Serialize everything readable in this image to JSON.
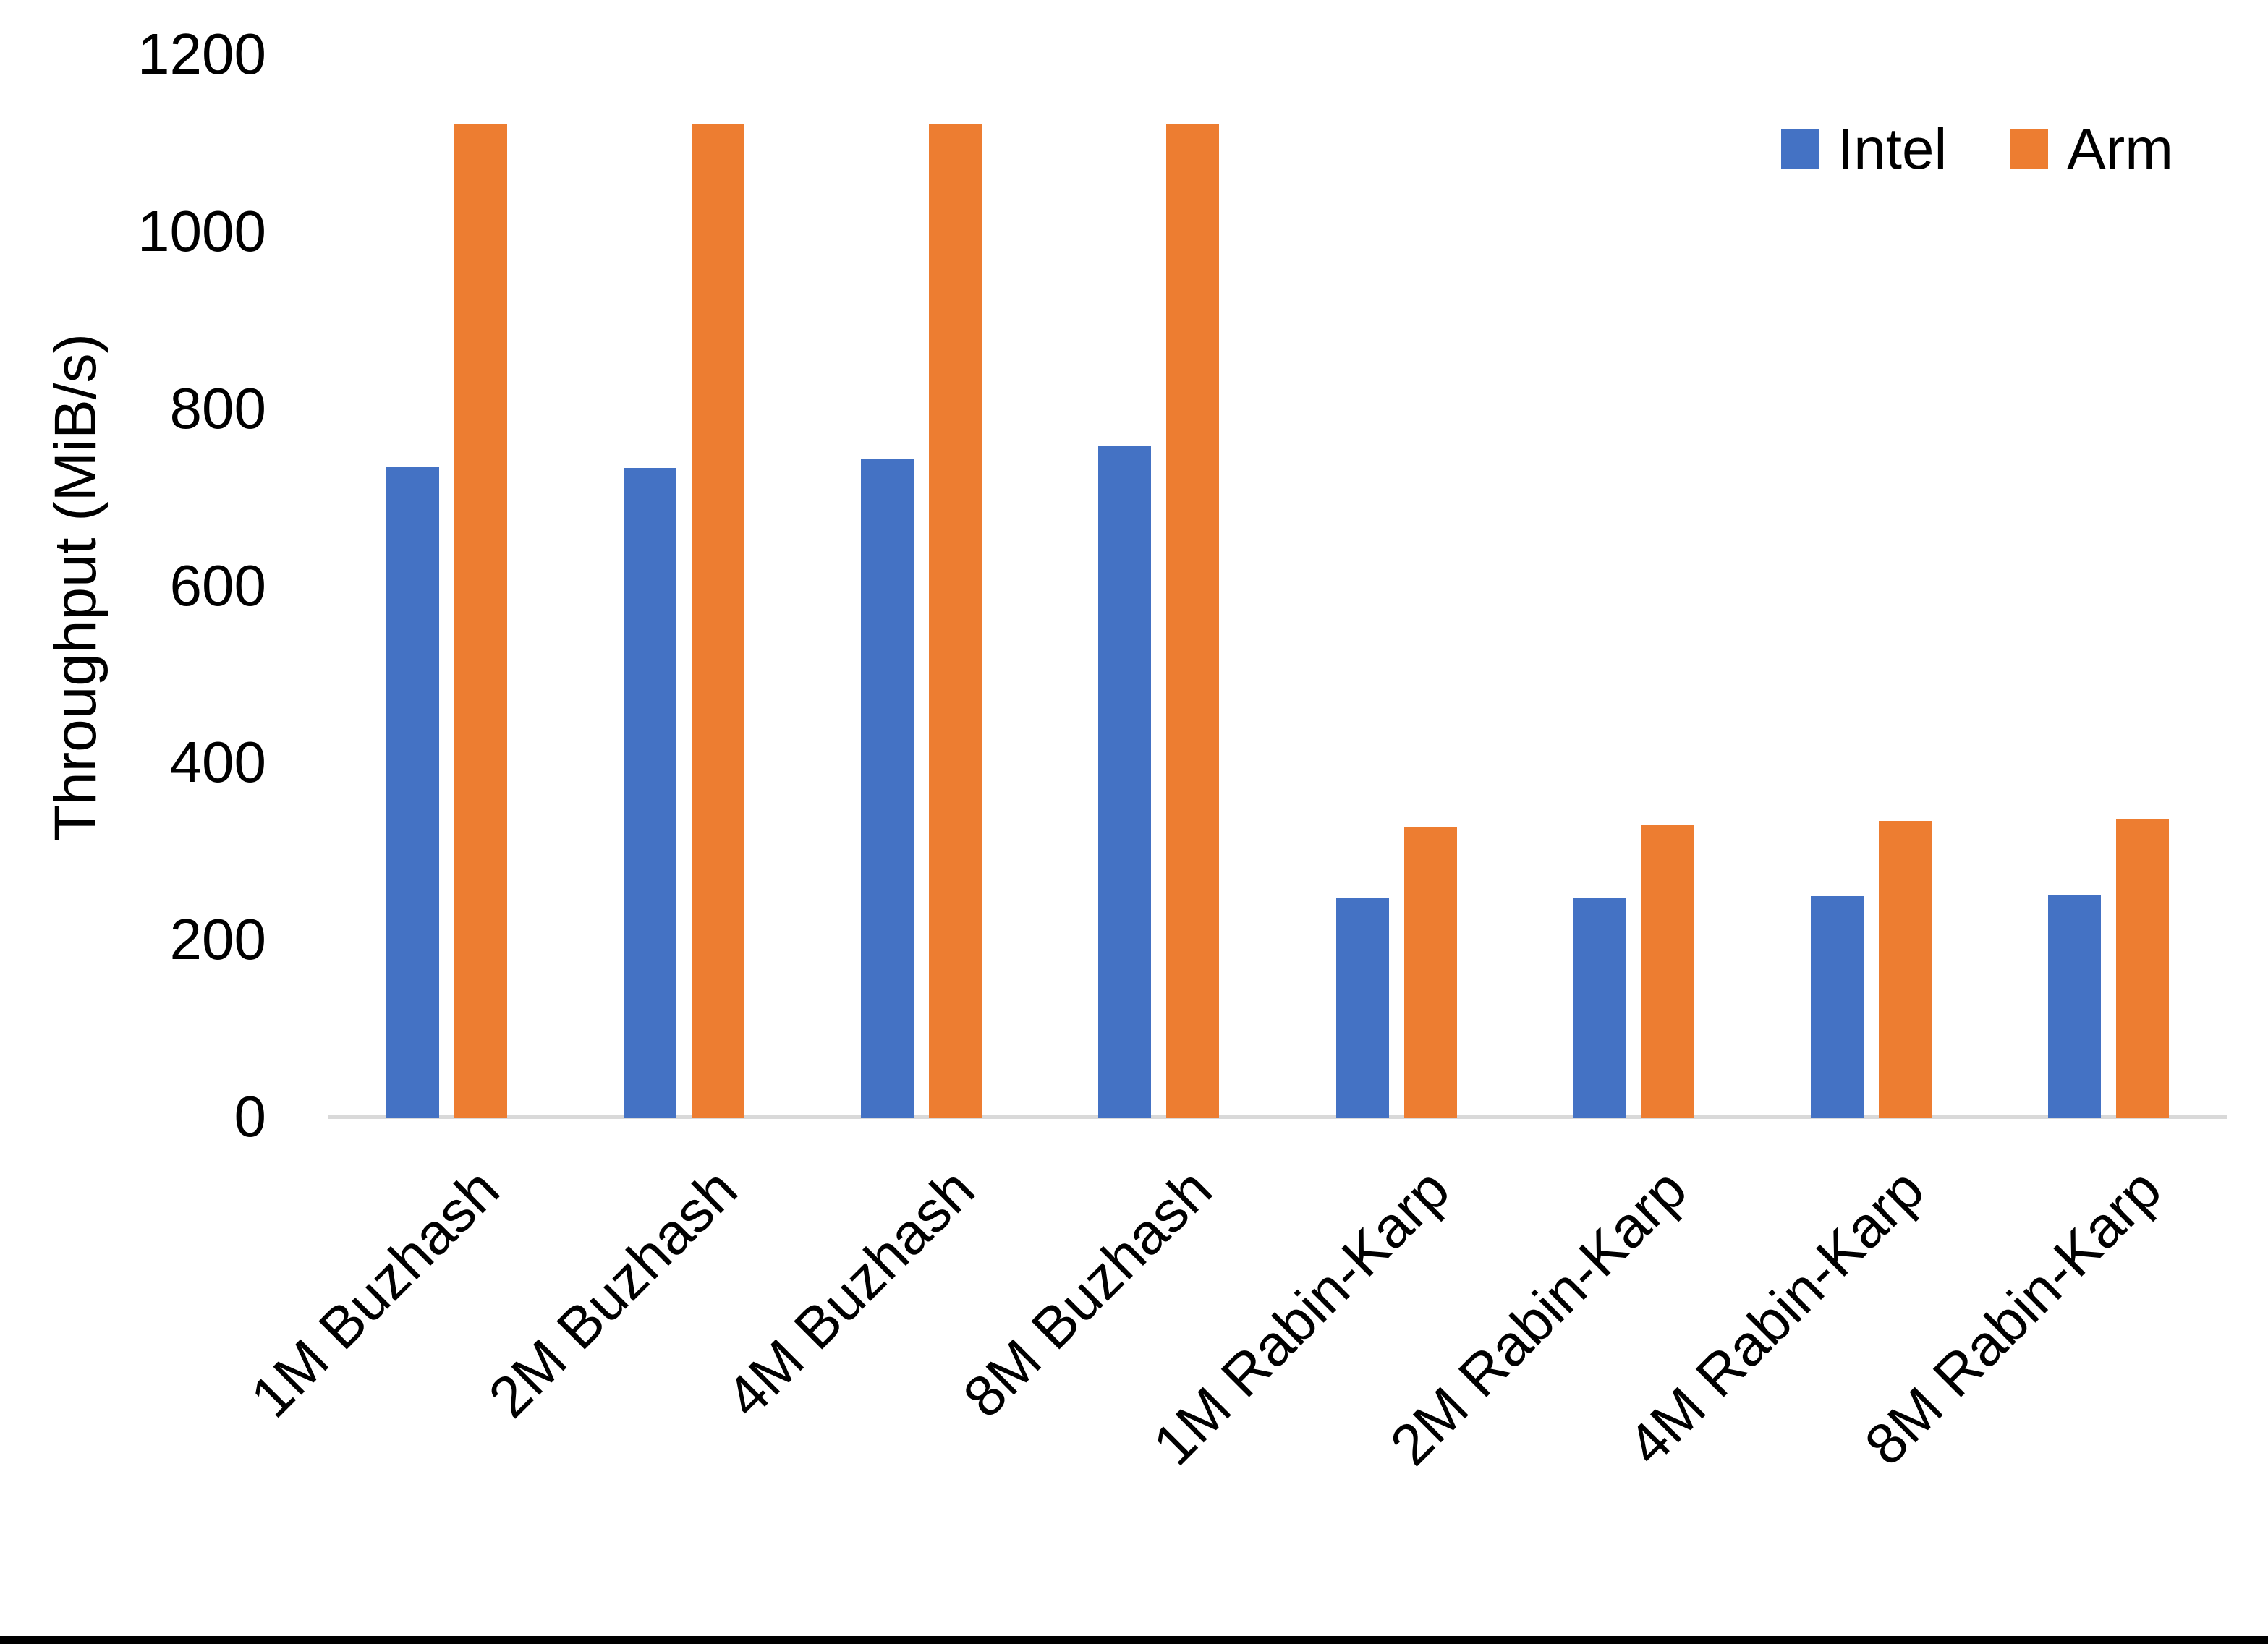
{
  "chart_data": {
    "type": "bar",
    "title": "",
    "categories": [
      "1M Buzhash",
      "2M Buzhash",
      "4M Buzhash",
      "8M Buzhash",
      "1M Rabin-Karp",
      "2M Rabin-Karp",
      "4M Rabin-Karp",
      "8M Rabin-Karp"
    ],
    "series": [
      {
        "name": "Intel",
        "color": "#4472C4",
        "values": [
          736,
          734,
          745,
          760,
          248,
          248,
          251,
          252
        ]
      },
      {
        "name": "Arm",
        "color": "#ED7D31",
        "values": [
          1122,
          1122,
          1122,
          1122,
          329,
          332,
          336,
          338
        ]
      }
    ],
    "xlabel": "",
    "ylabel": "Throughput (MiB/s)",
    "ylim": [
      0,
      1200
    ],
    "yticks": [
      0,
      200,
      400,
      600,
      800,
      1000,
      1200
    ],
    "grid": false,
    "legend_position": "top-right",
    "axis_line_color": "#D9D9D9",
    "text_color": "#000000"
  },
  "legend": {
    "items": [
      {
        "label": "Intel",
        "color": "#4472C4"
      },
      {
        "label": "Arm",
        "color": "#ED7D31"
      }
    ]
  }
}
